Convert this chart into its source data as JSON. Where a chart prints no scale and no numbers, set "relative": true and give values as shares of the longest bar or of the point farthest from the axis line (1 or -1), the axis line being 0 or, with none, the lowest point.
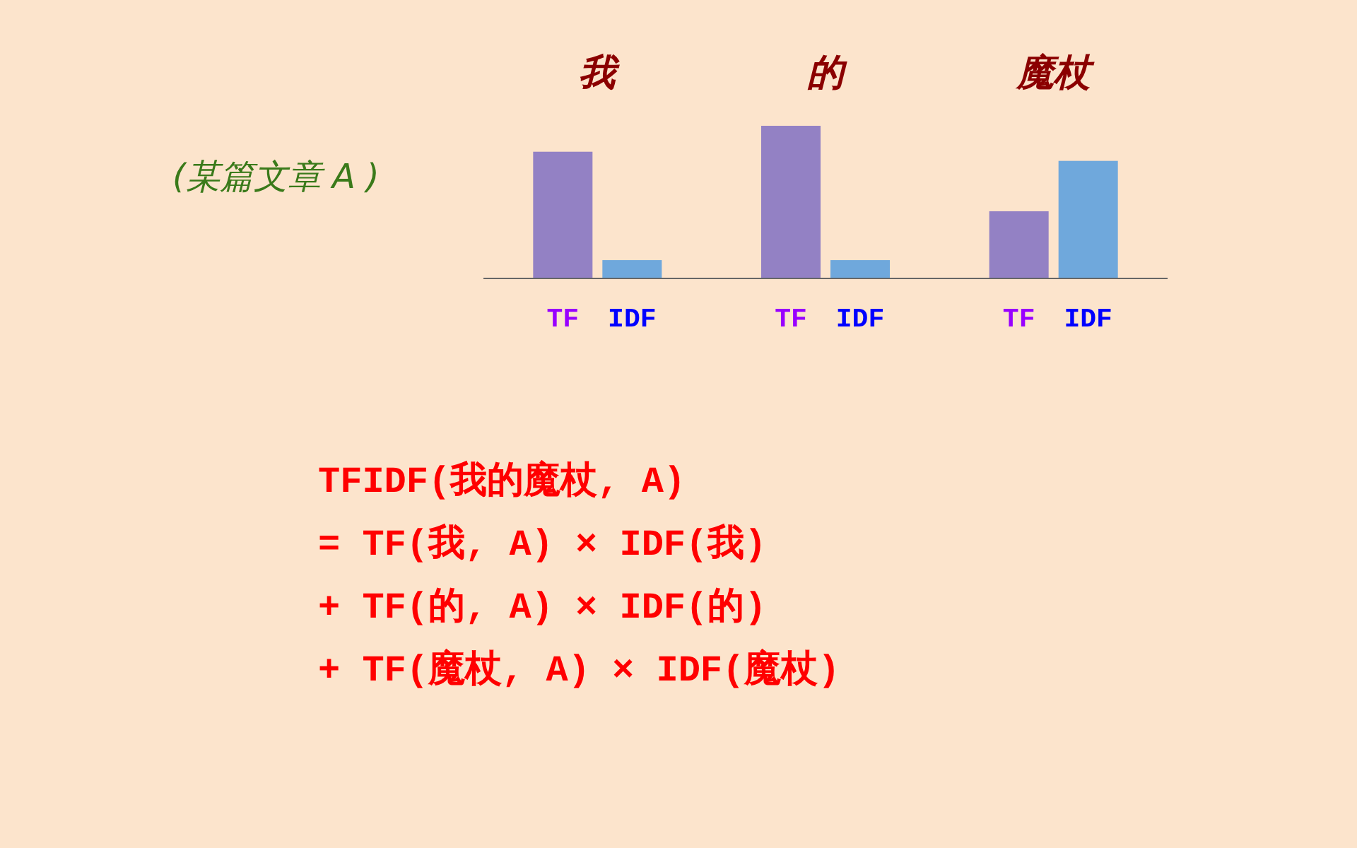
{
  "chart_data": {
    "type": "bar",
    "relative": true,
    "categories": [
      "我",
      "的",
      "魔杖"
    ],
    "series": [
      {
        "name": "TF",
        "color": "#9381c4",
        "values": [
          0.83,
          1,
          0.44
        ]
      },
      {
        "name": "IDF",
        "color": "#6fa8dc",
        "values": [
          0.12,
          0.12,
          0.77
        ]
      }
    ],
    "annotations": [
      "(某篇文章 A )",
      "TFIDF(我的魔杖, A)",
      "= TF(我, A) × IDF(我)",
      "+ TF(的, A) × IDF(的)",
      "+ TF(魔杖, A) × IDF(魔杖)"
    ]
  }
}
